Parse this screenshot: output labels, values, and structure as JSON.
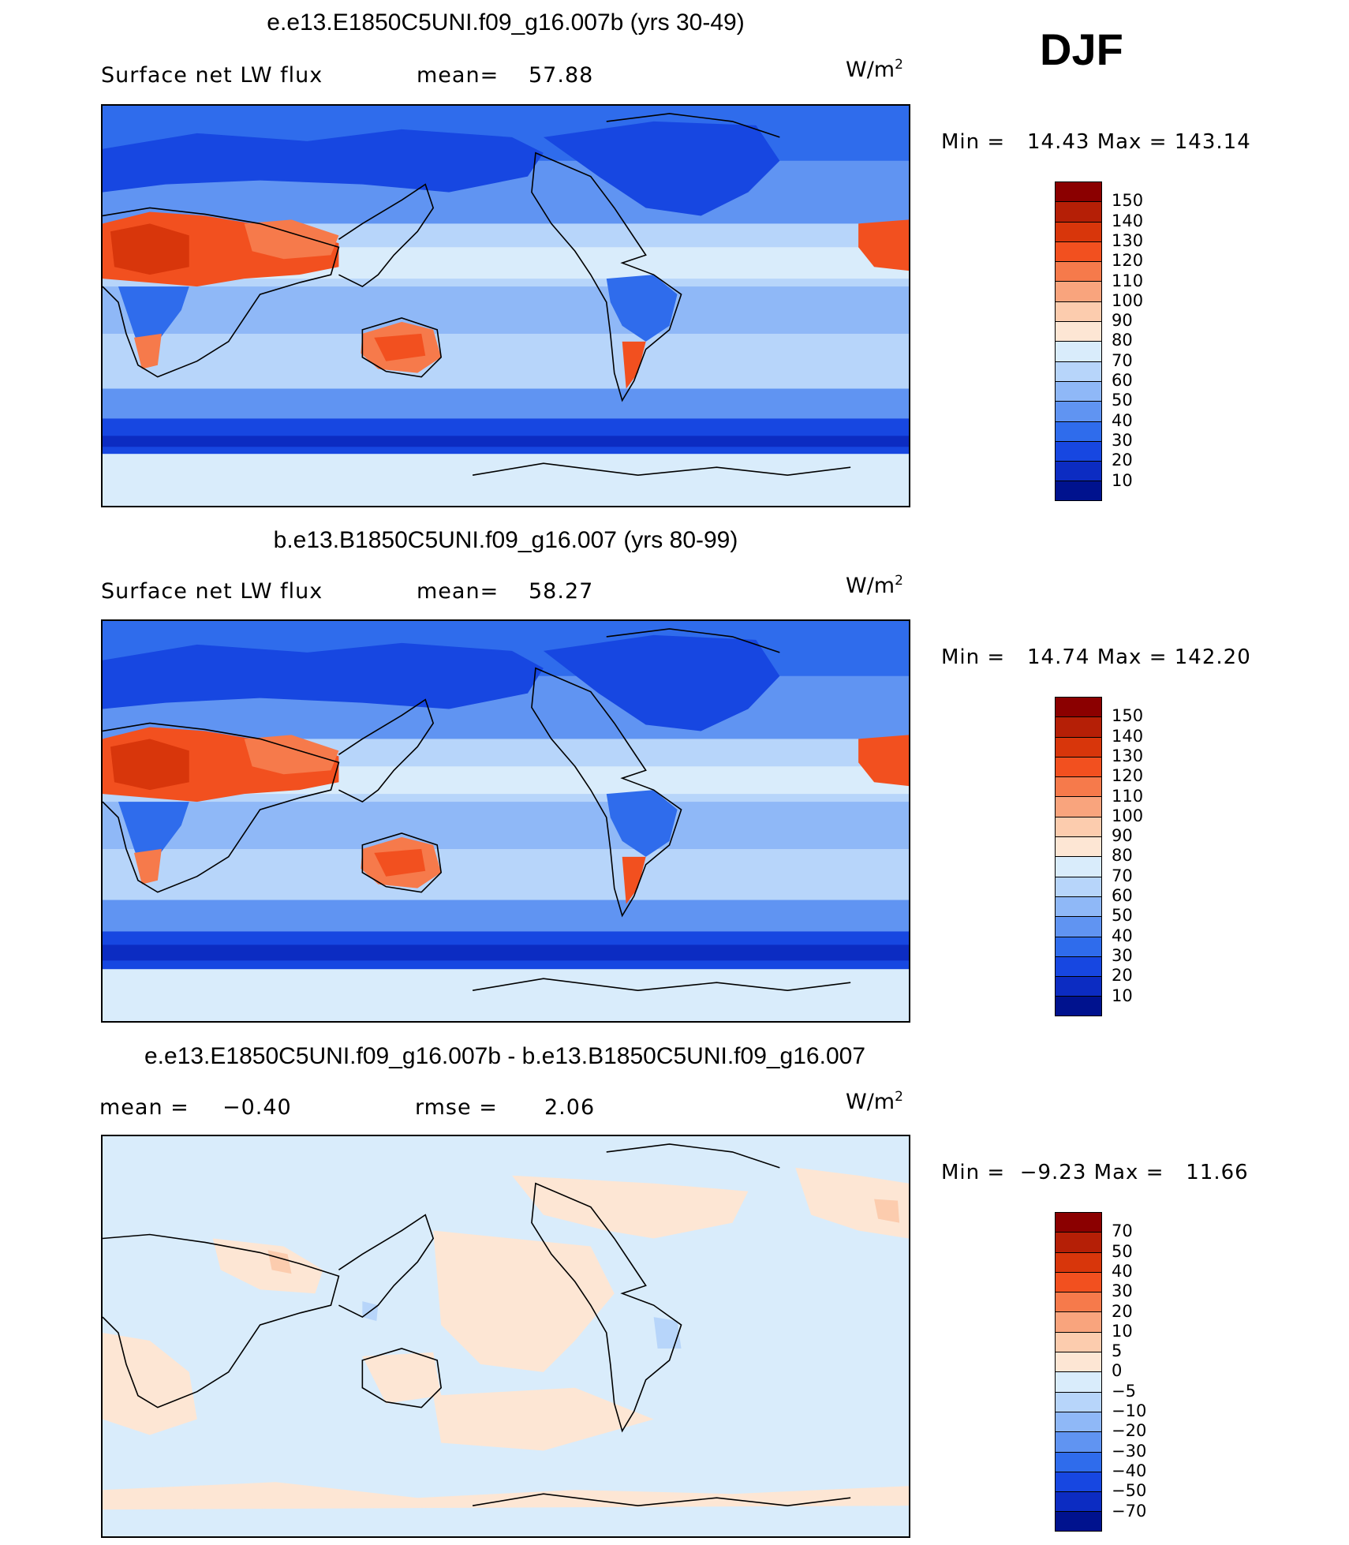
{
  "season": "DJF",
  "units_label": "W/m",
  "units_power": "2",
  "panels": [
    {
      "title": "e.e13.E1850C5UNI.f09_g16.007b (yrs 30-49)",
      "left_label": "Surface net LW flux",
      "stat_label": "mean=",
      "stat_value": "57.88",
      "min_label": "Min =",
      "min_value": "14.43",
      "max_label": "Max =",
      "max_value": "143.14",
      "colorbar_labels": [
        "150",
        "140",
        "130",
        "120",
        "110",
        "100",
        "90",
        "80",
        "70",
        "60",
        "50",
        "40",
        "30",
        "20",
        "10"
      ],
      "colorbar_colors": [
        "#8b0000",
        "#b51f06",
        "#d8360b",
        "#f2501f",
        "#f67a4b",
        "#f9a47d",
        "#fcccae",
        "#fde6d4",
        "#d9ecfb",
        "#b7d5fa",
        "#8fb8f7",
        "#6094f2",
        "#2f6cec",
        "#1747e1",
        "#0c2cc2",
        "#00128e"
      ]
    },
    {
      "title": "b.e13.B1850C5UNI.f09_g16.007 (yrs 80-99)",
      "left_label": "Surface net LW flux",
      "stat_label": "mean=",
      "stat_value": "58.27",
      "min_label": "Min =",
      "min_value": "14.74",
      "max_label": "Max =",
      "max_value": "142.20",
      "colorbar_labels": [
        "150",
        "140",
        "130",
        "120",
        "110",
        "100",
        "90",
        "80",
        "70",
        "60",
        "50",
        "40",
        "30",
        "20",
        "10"
      ],
      "colorbar_colors": [
        "#8b0000",
        "#b51f06",
        "#d8360b",
        "#f2501f",
        "#f67a4b",
        "#f9a47d",
        "#fcccae",
        "#fde6d4",
        "#d9ecfb",
        "#b7d5fa",
        "#8fb8f7",
        "#6094f2",
        "#2f6cec",
        "#1747e1",
        "#0c2cc2",
        "#00128e"
      ]
    },
    {
      "title": "e.e13.E1850C5UNI.f09_g16.007b - b.e13.B1850C5UNI.f09_g16.007",
      "left_label": "mean =",
      "left_value": "−0.40",
      "stat_label": "rmse =",
      "stat_value": "2.06",
      "min_label": "Min =",
      "min_value": "−9.23",
      "max_label": "Max =",
      "max_value": "11.66",
      "colorbar_labels": [
        "70",
        "50",
        "40",
        "30",
        "20",
        "10",
        "5",
        "0",
        "−5",
        "−10",
        "−20",
        "−30",
        "−40",
        "−50",
        "−70"
      ],
      "colorbar_colors": [
        "#8b0000",
        "#b51f06",
        "#d8360b",
        "#f2501f",
        "#f67a4b",
        "#f9a47d",
        "#fcccae",
        "#fde6d4",
        "#d9ecfb",
        "#b7d5fa",
        "#8fb8f7",
        "#6094f2",
        "#2f6cec",
        "#1747e1",
        "#0c2cc2",
        "#00128e"
      ]
    }
  ]
}
